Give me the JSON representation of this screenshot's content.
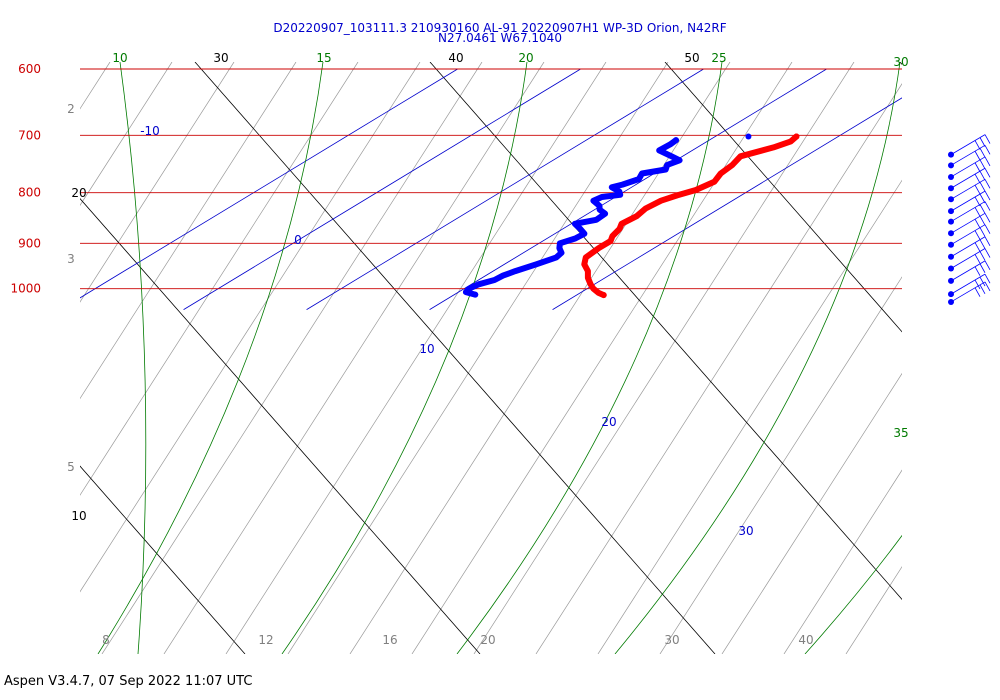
{
  "chart_data": {
    "type": "line",
    "title_line1": "D20220907_103111.3 210930160 AL-91  20220907H1 WP-3D Orion, N42RF",
    "title_line2": "N27.0461 W67.1040",
    "footer": "Aspen V3.4.7, 07 Sep 2022  11:07 UTC",
    "y_axis": {
      "scale": "log",
      "unit": "hPa",
      "range": [
        600,
        1050
      ],
      "labels": [
        "600",
        "700",
        "800",
        "900",
        "1000"
      ]
    },
    "bottom_axis": {
      "labels": [
        {
          "t": 8,
          "text": "8"
        },
        {
          "t": 12,
          "text": "12"
        },
        {
          "t": 16,
          "text": "16"
        },
        {
          "t": 20,
          "text": "20"
        },
        {
          "t": 30,
          "text": "30"
        },
        {
          "t": 40,
          "text": "40"
        }
      ]
    },
    "isotherms": {
      "values": [
        -10,
        0,
        10,
        20,
        30
      ],
      "labels": [
        {
          "t": -10,
          "text": "-10"
        },
        {
          "t": 0,
          "text": "0"
        },
        {
          "t": 10,
          "text": "10"
        },
        {
          "t": 20,
          "text": "20"
        },
        {
          "t": 30,
          "text": "30"
        }
      ]
    },
    "black_diagonal_labels": [
      {
        "text": "30"
      },
      {
        "text": "40"
      },
      {
        "text": "50"
      },
      {
        "text": "20"
      },
      {
        "text": "10"
      }
    ],
    "green_moist_adiabats": {
      "labels": [
        {
          "text": "10"
        },
        {
          "text": "15"
        },
        {
          "text": "20"
        },
        {
          "text": "25"
        },
        {
          "text": "30"
        },
        {
          "text": "35"
        }
      ]
    },
    "mixing_ratio_labels": [
      {
        "text": "2"
      },
      {
        "text": "3"
      },
      {
        "text": "5"
      }
    ],
    "series": [
      {
        "role": "temperature",
        "color": "#ff0000",
        "points": [
          [
            702,
            26.6
          ],
          [
            710,
            26.8
          ],
          [
            720,
            26.2
          ],
          [
            735,
            24.7
          ],
          [
            750,
            25.2
          ],
          [
            765,
            25.4
          ],
          [
            780,
            26.0
          ],
          [
            795,
            25.6
          ],
          [
            805,
            24.8
          ],
          [
            815,
            24.2
          ],
          [
            830,
            24.0
          ],
          [
            845,
            24.3
          ],
          [
            860,
            24.1
          ],
          [
            870,
            24.6
          ],
          [
            885,
            25.0
          ],
          [
            895,
            25.5
          ],
          [
            910,
            25.5
          ],
          [
            930,
            25.7
          ],
          [
            945,
            26.5
          ],
          [
            960,
            27.7
          ],
          [
            975,
            28.6
          ],
          [
            990,
            29.7
          ],
          [
            1000,
            30.5
          ],
          [
            1010,
            31.5
          ],
          [
            1015,
            32.2
          ]
        ]
      },
      {
        "role": "dewpoint",
        "color": "#0000ff",
        "points": [
          [
            708,
            17.3
          ],
          [
            715,
            17.4
          ],
          [
            725,
            17.3
          ],
          [
            735,
            19.1
          ],
          [
            742,
            20.3
          ],
          [
            750,
            19.9
          ],
          [
            758,
            20.4
          ],
          [
            765,
            19.0
          ],
          [
            775,
            19.5
          ],
          [
            785,
            18.9
          ],
          [
            790,
            18.4
          ],
          [
            798,
            19.6
          ],
          [
            804,
            20.1
          ],
          [
            808,
            18.9
          ],
          [
            815,
            18.7
          ],
          [
            825,
            19.9
          ],
          [
            832,
            20.4
          ],
          [
            840,
            21.4
          ],
          [
            852,
            21.5
          ],
          [
            860,
            20.3
          ],
          [
            870,
            21.4
          ],
          [
            880,
            22.4
          ],
          [
            890,
            22.3
          ],
          [
            900,
            21.7
          ],
          [
            910,
            22.3
          ],
          [
            920,
            23.1
          ],
          [
            930,
            23.3
          ],
          [
            945,
            22.6
          ],
          [
            960,
            21.8
          ],
          [
            970,
            21.4
          ],
          [
            980,
            21.3
          ],
          [
            990,
            20.6
          ],
          [
            1000,
            20.4
          ],
          [
            1008,
            20.6
          ],
          [
            1014,
            21.7
          ]
        ]
      }
    ],
    "isolated_points": [
      {
        "p": 702,
        "t": 22.7,
        "color": "#0000ff"
      }
    ],
    "wind_barbs": {
      "count": 14,
      "pressures": [
        712,
        730,
        750,
        770,
        790,
        812,
        832,
        855,
        878,
        903,
        928,
        955,
        985,
        1003
      ]
    }
  }
}
